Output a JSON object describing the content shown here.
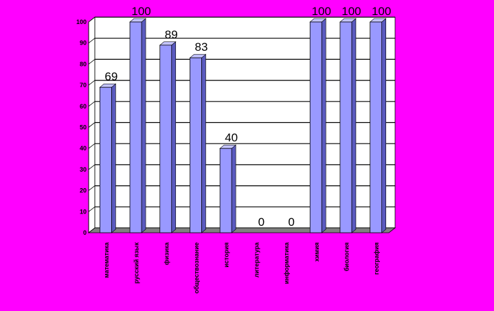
{
  "chart_data": {
    "type": "bar",
    "title": "",
    "xlabel": "",
    "ylabel": "",
    "categories": [
      "математика",
      "русский язык",
      "физика",
      "обществознание",
      "история",
      "литература",
      "информатика",
      "химия",
      "биология",
      "география"
    ],
    "values": [
      69,
      100,
      89,
      83,
      40,
      0,
      0,
      100,
      100,
      100
    ],
    "data_labels": [
      "69",
      "100",
      "89",
      "83",
      "40",
      "0",
      "0",
      "100",
      "100",
      "100"
    ],
    "y_ticks": [
      "0",
      "10",
      "20",
      "30",
      "40",
      "50",
      "60",
      "70",
      "80",
      "90",
      "100"
    ],
    "ylim": [
      0,
      100
    ],
    "grid": true,
    "legend": "none"
  },
  "colors": {
    "background": "#ff00ff",
    "plot_area": "#ffffff",
    "bar_front": "#9999ff",
    "bar_side": "#5a5abf",
    "bar_top": "#c4c4ff",
    "floor": "#808080",
    "grid": "#000000",
    "text": "#000000"
  }
}
